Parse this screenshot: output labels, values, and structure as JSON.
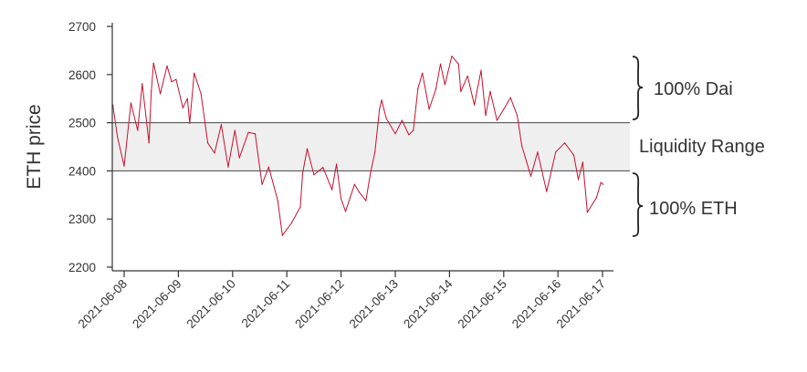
{
  "chart_data": {
    "type": "line",
    "title": "",
    "xlabel": "",
    "ylabel": "ETH price",
    "ylim": [
      2200,
      2700
    ],
    "yticks": [
      2200,
      2300,
      2400,
      2500,
      2600,
      2700
    ],
    "xticks": [
      "2021-06-08",
      "2021-06-09",
      "2021-06-10",
      "2021-06-11",
      "2021-06-12",
      "2021-06-13",
      "2021-06-14",
      "2021-06-15",
      "2021-06-16",
      "2021-06-17"
    ],
    "grid": false,
    "line_color": "#c8102e",
    "range_band": {
      "low": 2400,
      "high": 2500,
      "label": "Liquidity Range",
      "fill": "#efefef"
    },
    "annotations": {
      "above": "100% Dai",
      "below": "100% ETH"
    },
    "series": [
      {
        "x": [
          "2021-06-07T19:00",
          "2021-06-07T21:00",
          "2021-06-08T00:00",
          "2021-06-08T03:00",
          "2021-06-08T06:00",
          "2021-06-08T08:00",
          "2021-06-08T11:00",
          "2021-06-08T12:00",
          "2021-06-08T13:00",
          "2021-06-08T16:00",
          "2021-06-08T19:00",
          "2021-06-08T21:00",
          "2021-06-08T23:00",
          "2021-06-09T02:00",
          "2021-06-09T04:00",
          "2021-06-09T05:00",
          "2021-06-09T07:00",
          "2021-06-09T10:00",
          "2021-06-09T13:00",
          "2021-06-09T16:00",
          "2021-06-09T19:00",
          "2021-06-09T22:00",
          "2021-06-10T01:00",
          "2021-06-10T03:00",
          "2021-06-10T07:00",
          "2021-06-10T10:00",
          "2021-06-10T13:00",
          "2021-06-10T16:00",
          "2021-06-10T20:00",
          "2021-06-10T22:00",
          "2021-06-11T02:00",
          "2021-06-11T06:00",
          "2021-06-11T07:00",
          "2021-06-11T09:00",
          "2021-06-11T12:00",
          "2021-06-11T16:00",
          "2021-06-11T20:00",
          "2021-06-11T22:00",
          "2021-06-12T00:00",
          "2021-06-12T02:00",
          "2021-06-12T06:00",
          "2021-06-12T08:00",
          "2021-06-12T11:00",
          "2021-06-12T13:00",
          "2021-06-12T15:00",
          "2021-06-12T17:00",
          "2021-06-12T18:00",
          "2021-06-12T20:00",
          "2021-06-13T00:00",
          "2021-06-13T03:00",
          "2021-06-13T06:00",
          "2021-06-13T08:00",
          "2021-06-13T10:00",
          "2021-06-13T12:00",
          "2021-06-13T15:00",
          "2021-06-13T18:00",
          "2021-06-13T20:00",
          "2021-06-13T22:00",
          "2021-06-14T01:00",
          "2021-06-14T04:00",
          "2021-06-14T05:00",
          "2021-06-14T08:00",
          "2021-06-14T11:00",
          "2021-06-14T14:00",
          "2021-06-14T16:00",
          "2021-06-14T18:00",
          "2021-06-14T21:00",
          "2021-06-15T00:00",
          "2021-06-15T03:00",
          "2021-06-15T06:00",
          "2021-06-15T08:00",
          "2021-06-15T12:00",
          "2021-06-15T15:00",
          "2021-06-15T19:00",
          "2021-06-15T23:00",
          "2021-06-16T03:00",
          "2021-06-16T07:00",
          "2021-06-16T09:00",
          "2021-06-16T11:00",
          "2021-06-16T13:00",
          "2021-06-16T17:00",
          "2021-06-16T19:00",
          "2021-06-16T20:00"
        ],
        "y": [
          2537,
          2471,
          2410,
          2541,
          2484,
          2581,
          2458,
          2565,
          2624,
          2560,
          2618,
          2585,
          2590,
          2531,
          2550,
          2499,
          2603,
          2560,
          2458,
          2437,
          2496,
          2408,
          2484,
          2427,
          2480,
          2477,
          2372,
          2408,
          2338,
          2266,
          2291,
          2325,
          2395,
          2446,
          2392,
          2407,
          2361,
          2414,
          2342,
          2316,
          2372,
          2356,
          2338,
          2395,
          2439,
          2528,
          2547,
          2509,
          2477,
          2505,
          2475,
          2484,
          2571,
          2603,
          2528,
          2571,
          2622,
          2579,
          2638,
          2622,
          2565,
          2597,
          2537,
          2609,
          2515,
          2565,
          2505,
          2528,
          2552,
          2515,
          2452,
          2389,
          2439,
          2357,
          2439,
          2458,
          2433,
          2382,
          2418,
          2314,
          2344,
          2376,
          2372
        ]
      }
    ]
  }
}
